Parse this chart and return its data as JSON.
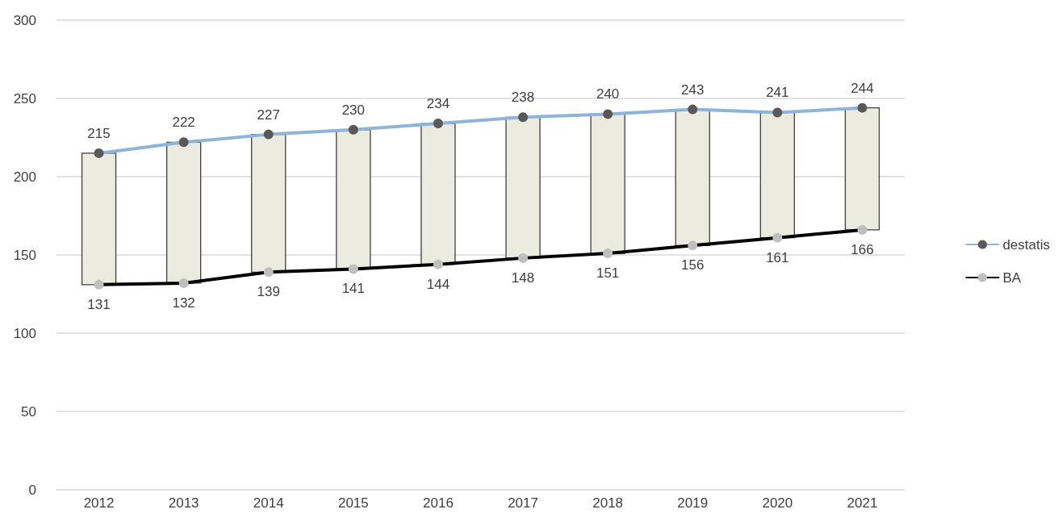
{
  "chart_data": {
    "type": "line",
    "categories": [
      "2012",
      "2013",
      "2014",
      "2015",
      "2016",
      "2017",
      "2018",
      "2019",
      "2020",
      "2021"
    ],
    "series": [
      {
        "type": "bar",
        "color": "#ebebe0",
        "base": [
          131,
          132,
          139,
          141,
          144,
          148,
          151,
          156,
          161,
          166
        ],
        "values": [
          84,
          90,
          88,
          89,
          90,
          90,
          89,
          87,
          80,
          78
        ]
      },
      {
        "name": "destatis",
        "color": "#8fb4d9",
        "values": [
          215,
          222,
          227,
          230,
          234,
          238,
          240,
          243,
          241,
          244
        ],
        "value_labels": [
          "215",
          "222",
          "227",
          "230",
          "234",
          "238",
          "240",
          "243",
          "241",
          "244"
        ]
      },
      {
        "name": "BA",
        "color": "#000000",
        "values": [
          131,
          132,
          139,
          141,
          144,
          148,
          151,
          156,
          161,
          166
        ],
        "value_labels": [
          "131",
          "132",
          "139",
          "141",
          "144",
          "148",
          "151",
          "156",
          "161",
          "166"
        ]
      }
    ],
    "ylim": [
      0,
      300
    ],
    "yticks": [
      0,
      50,
      100,
      150,
      200,
      250,
      300
    ],
    "grid": "y",
    "legend": "right",
    "marker": "circle"
  }
}
